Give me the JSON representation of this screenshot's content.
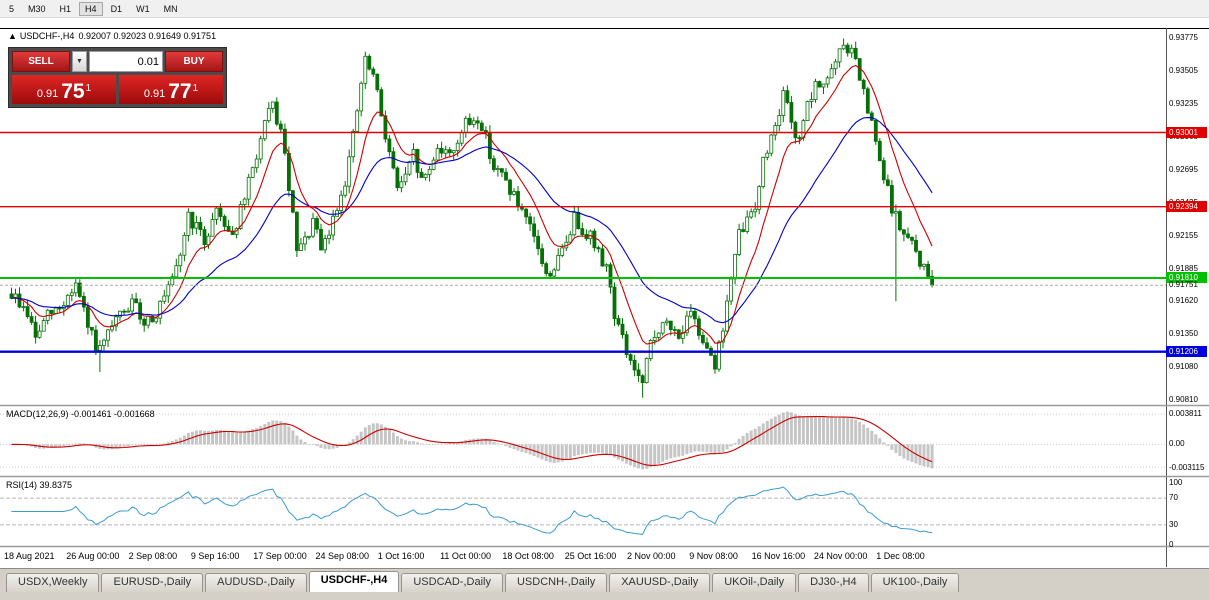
{
  "toolbar": {
    "timeframes": [
      {
        "label": "5",
        "active": false
      },
      {
        "label": "M30",
        "active": false
      },
      {
        "label": "H1",
        "active": false
      },
      {
        "label": "H4",
        "active": true
      },
      {
        "label": "D1",
        "active": false
      },
      {
        "label": "W1",
        "active": false
      },
      {
        "label": "MN",
        "active": false
      }
    ]
  },
  "chart_header": {
    "collapse_icon": "▲",
    "symbol": "USDCHF-,H4",
    "ohlc": "0.92007 0.92023 0.91649 0.91751"
  },
  "trade_panel": {
    "sell": "SELL",
    "buy": "BUY",
    "volume": "0.01",
    "dropdown_icon": "▼",
    "bid": {
      "big_figure": "0.91",
      "pips": "75",
      "pipette": "1"
    },
    "ask": {
      "big_figure": "0.91",
      "pips": "77",
      "pipette": "1"
    }
  },
  "price_axis": {
    "ticks": [
      "0.93775",
      "0.93505",
      "0.93235",
      "0.92965",
      "0.92695",
      "0.92425",
      "0.92155",
      "0.91885",
      "0.91620",
      "0.91350",
      "0.91080",
      "0.90810"
    ]
  },
  "hlines": [
    {
      "price": 0.93001,
      "label": "0.93001",
      "color": "#e00000",
      "width": 1.4
    },
    {
      "price": 0.92394,
      "label": "0.92394",
      "color": "#e00000",
      "width": 1.4
    },
    {
      "price": 0.9181,
      "label": "0.91810",
      "color": "#00c000",
      "width": 2
    },
    {
      "price": 0.91206,
      "label": "0.91206",
      "color": "#0000d8",
      "width": 2.4
    }
  ],
  "bid": {
    "price": 0.91751,
    "label": "0.91751"
  },
  "macd_panel": {
    "title": "MACD(12,26,9) -0.001461 -0.001668",
    "axis_max": "0.003811",
    "axis_zero": "0.00",
    "axis_min": "-0.003115"
  },
  "rsi_panel": {
    "title": "RSI(14) 39.8375",
    "axis": [
      100,
      70,
      30,
      0
    ],
    "levels": [
      70,
      30
    ]
  },
  "time_axis": {
    "labels": [
      "18 Aug 2021",
      "26 Aug 00:00",
      "2 Sep 08:00",
      "9 Sep 16:00",
      "17 Sep 00:00",
      "24 Sep 08:00",
      "1 Oct 16:00",
      "11 Oct 00:00",
      "18 Oct 08:00",
      "25 Oct 16:00",
      "2 Nov 00:00",
      "9 Nov 08:00",
      "16 Nov 16:00",
      "24 Nov 00:00",
      "1 Dec 08:00"
    ]
  },
  "tabs": {
    "active_index": 3,
    "items": [
      "USDX,Weekly",
      "EURUSD-,Daily",
      "AUDUSD-,Daily",
      "USDCHF-,H4",
      "USDCAD-,Daily",
      "USDCNH-,Daily",
      "XAUUSD-,Daily",
      "UKOil-,Daily",
      "DJ30-,H4",
      "UK100-,Daily"
    ]
  },
  "chart_data": {
    "type": "candlestick",
    "symbol": "USDCHF",
    "timeframe": "H4",
    "last_price": 0.91751,
    "price_top": 0.93849,
    "price_bottom": 0.90778,
    "candle_count": 230,
    "colors": {
      "up": "#ffffff",
      "up_border": "#067006",
      "down": "#067006",
      "ma_fast": "#cc0000",
      "ma_slow": "#0000cc",
      "macd_hist": "#c6c6c6",
      "macd_signal": "#cc0000",
      "rsi_line": "#3a9bd5"
    },
    "ma_fast_period": 10,
    "ma_slow_period": 30,
    "macd": {
      "fast": 12,
      "slow": 26,
      "signal": 9,
      "current": -0.001461,
      "signal_current": -0.001668
    },
    "rsi": {
      "period": 14,
      "current": 39.8375
    },
    "anchors": [
      [
        0,
        0.9168
      ],
      [
        4,
        0.9152
      ],
      [
        6,
        0.9132
      ],
      [
        9,
        0.915
      ],
      [
        12,
        0.9156
      ],
      [
        16,
        0.9176
      ],
      [
        19,
        0.914
      ],
      [
        22,
        0.912
      ],
      [
        26,
        0.9146
      ],
      [
        30,
        0.916
      ],
      [
        33,
        0.9146
      ],
      [
        36,
        0.9152
      ],
      [
        39,
        0.917
      ],
      [
        41,
        0.9186
      ],
      [
        44,
        0.9232
      ],
      [
        46,
        0.9222
      ],
      [
        48,
        0.921
      ],
      [
        51,
        0.9238
      ],
      [
        55,
        0.9216
      ],
      [
        58,
        0.9246
      ],
      [
        60,
        0.927
      ],
      [
        63,
        0.9306
      ],
      [
        65,
        0.9322
      ],
      [
        67,
        0.93
      ],
      [
        69,
        0.9256
      ],
      [
        71,
        0.9202
      ],
      [
        73,
        0.921
      ],
      [
        75,
        0.9228
      ],
      [
        77,
        0.9202
      ],
      [
        79,
        0.9218
      ],
      [
        81,
        0.924
      ],
      [
        83,
        0.9262
      ],
      [
        85,
        0.9296
      ],
      [
        87,
        0.934
      ],
      [
        88,
        0.9358
      ],
      [
        90,
        0.9346
      ],
      [
        91,
        0.933
      ],
      [
        93,
        0.93
      ],
      [
        95,
        0.9268
      ],
      [
        96,
        0.9256
      ],
      [
        98,
        0.9262
      ],
      [
        100,
        0.9282
      ],
      [
        102,
        0.926
      ],
      [
        104,
        0.927
      ],
      [
        106,
        0.929
      ],
      [
        108,
        0.9282
      ],
      [
        110,
        0.9288
      ],
      [
        113,
        0.9306
      ],
      [
        116,
        0.9312
      ],
      [
        118,
        0.9296
      ],
      [
        120,
        0.9272
      ],
      [
        123,
        0.926
      ],
      [
        125,
        0.9248
      ],
      [
        127,
        0.9232
      ],
      [
        129,
        0.922
      ],
      [
        131,
        0.9206
      ],
      [
        133,
        0.9182
      ],
      [
        135,
        0.919
      ],
      [
        137,
        0.9202
      ],
      [
        140,
        0.923
      ],
      [
        142,
        0.9222
      ],
      [
        144,
        0.9216
      ],
      [
        146,
        0.92
      ],
      [
        148,
        0.9192
      ],
      [
        150,
        0.9152
      ],
      [
        153,
        0.912
      ],
      [
        155,
        0.9106
      ],
      [
        157,
        0.9092
      ],
      [
        159,
        0.9128
      ],
      [
        161,
        0.914
      ],
      [
        163,
        0.9142
      ],
      [
        165,
        0.9136
      ],
      [
        167,
        0.9138
      ],
      [
        169,
        0.915
      ],
      [
        171,
        0.9136
      ],
      [
        173,
        0.9128
      ],
      [
        175,
        0.911
      ],
      [
        177,
        0.914
      ],
      [
        178,
        0.9162
      ],
      [
        180,
        0.9196
      ],
      [
        181,
        0.9216
      ],
      [
        183,
        0.9228
      ],
      [
        185,
        0.9242
      ],
      [
        187,
        0.9276
      ],
      [
        189,
        0.9296
      ],
      [
        190,
        0.931
      ],
      [
        192,
        0.933
      ],
      [
        194,
        0.931
      ],
      [
        195,
        0.929
      ],
      [
        197,
        0.9312
      ],
      [
        199,
        0.9328
      ],
      [
        200,
        0.9336
      ],
      [
        202,
        0.9342
      ],
      [
        204,
        0.935
      ],
      [
        205,
        0.9356
      ],
      [
        207,
        0.9371
      ],
      [
        209,
        0.9366
      ],
      [
        210,
        0.9358
      ],
      [
        212,
        0.933
      ],
      [
        214,
        0.9306
      ],
      [
        215,
        0.929
      ],
      [
        217,
        0.9262
      ],
      [
        219,
        0.924
      ],
      [
        220,
        0.923
      ],
      [
        222,
        0.9216
      ],
      [
        224,
        0.9208
      ],
      [
        225,
        0.9202
      ],
      [
        227,
        0.9188
      ],
      [
        229,
        0.91751
      ]
    ],
    "wick_overrides": [
      {
        "i": 22,
        "low": 0.9104
      },
      {
        "i": 157,
        "low": 0.9083
      },
      {
        "i": 207,
        "high": 0.9377
      },
      {
        "i": 220,
        "low": 0.9162
      }
    ]
  }
}
